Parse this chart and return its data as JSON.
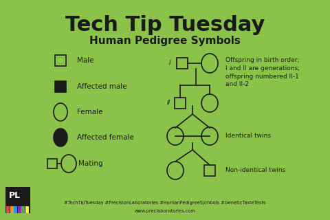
{
  "bg_color": "#8bc34a",
  "title": "Tech Tip Tuesday",
  "subtitle": "Human Pedigree Symbols",
  "title_fontsize": 22,
  "subtitle_fontsize": 11,
  "line_color": "#1a1a1a",
  "text_color": "#1a1a1a",
  "footer_text1": "#TechTipTuesday #PrecisionLaboratories #HumanPedigreeSymbols #GeneticTasteTests",
  "footer_text2": "www.preclaboratories.com",
  "label_fontsize": 7.5,
  "annot_fontsize": 6.5,
  "gen_label_fontsize": 6.5,
  "logo_colors": [
    "#f44336",
    "#ff9800",
    "#2196f3",
    "#9c27b0",
    "#4caf50",
    "#ffeb3b"
  ]
}
